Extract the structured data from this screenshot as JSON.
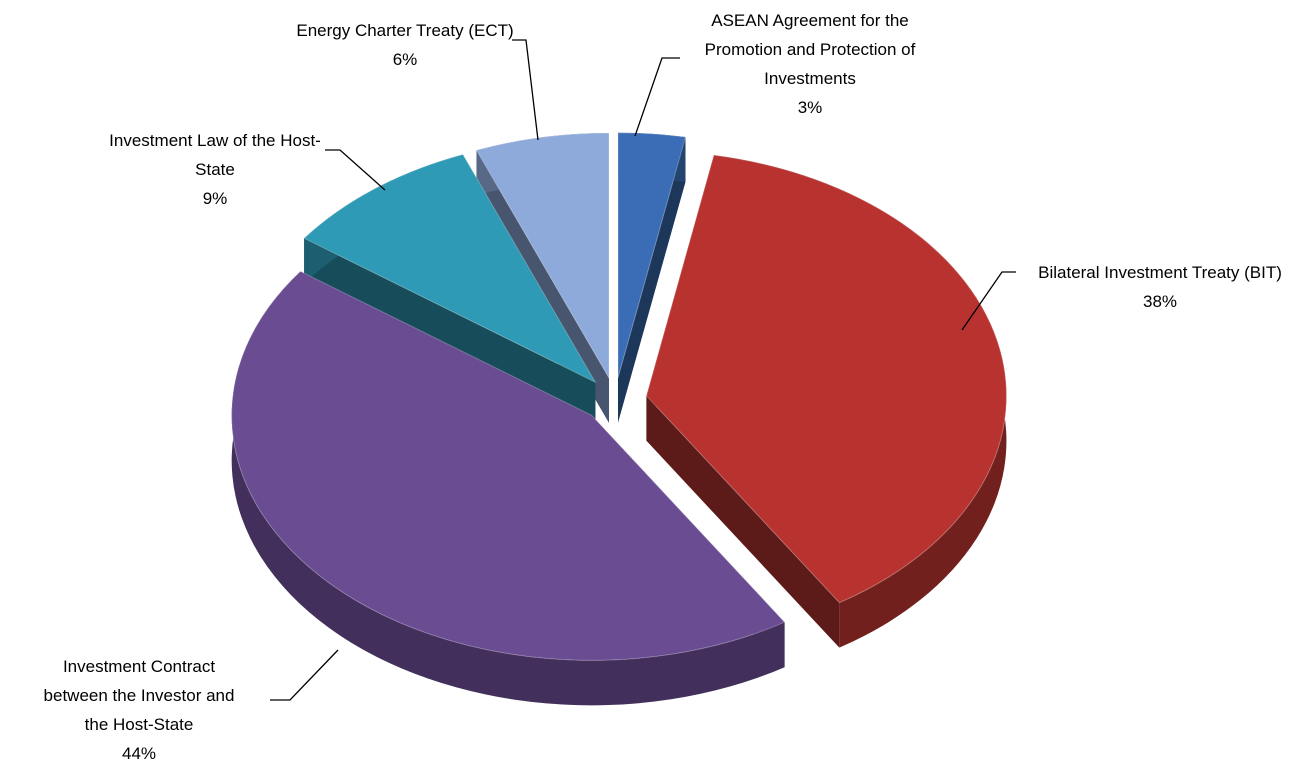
{
  "chart_data": {
    "type": "pie",
    "categories": [
      "ASEAN Agreement for the Promotion and Protection of Investments",
      "Bilateral Investment Treaty (BIT)",
      "Investment Contract between the Investor and the Host-State",
      "Investment Law of the Host-State",
      "Energy Charter Treaty (ECT)"
    ],
    "values": [
      3,
      38,
      44,
      9,
      6
    ],
    "value_labels": [
      "3%",
      "38%",
      "44%",
      "9%",
      "6%"
    ],
    "colors": [
      "#3a6db5",
      "#b83330",
      "#6a4c93",
      "#2e9ab5",
      "#8eaadb"
    ]
  }
}
